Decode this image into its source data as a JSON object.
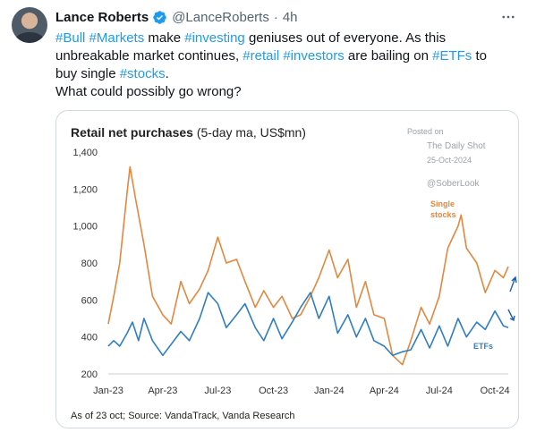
{
  "tweet": {
    "author_name": "Lance Roberts",
    "handle": "@LanceRoberts",
    "separator": "·",
    "time": "4h",
    "text_segments": [
      [
        {
          "t": "#Bull",
          "tag": true
        },
        {
          "t": " ",
          "tag": false
        },
        {
          "t": "#Markets",
          "tag": true
        },
        {
          "t": " make ",
          "tag": false
        },
        {
          "t": "#investing",
          "tag": true
        },
        {
          "t": " geniuses out of everyone. As this",
          "tag": false
        }
      ],
      [
        {
          "t": "unbreakable market continues, ",
          "tag": false
        },
        {
          "t": "#retail",
          "tag": true
        },
        {
          "t": " ",
          "tag": false
        },
        {
          "t": "#investors",
          "tag": true
        },
        {
          "t": " are bailing on ",
          "tag": false
        },
        {
          "t": "#ETFs",
          "tag": true
        },
        {
          "t": " to",
          "tag": false
        }
      ],
      [
        {
          "t": "buy single ",
          "tag": false
        },
        {
          "t": "#stocks",
          "tag": true
        },
        {
          "t": ".",
          "tag": false
        }
      ],
      [
        {
          "t": "What could possibly go wrong?",
          "tag": false
        }
      ]
    ],
    "icons": {
      "verified": "verified-badge-icon",
      "more": "more-options-icon"
    },
    "colors": {
      "link": "#1d9bf0",
      "verified": "#1d9bf0",
      "muted": "#536471"
    }
  },
  "chart_data": {
    "type": "line",
    "title_bold": "Retail net purchases",
    "title_rest": " (5-day ma, US$mn)",
    "x_ticks": [
      "Jan-23",
      "Apr-23",
      "Jul-23",
      "Oct-23",
      "Jan-24",
      "Apr-24",
      "Jul-24",
      "Oct-24"
    ],
    "y_ticks": [
      "1,400",
      "1,200",
      "1,000",
      "800",
      "600",
      "400",
      "200"
    ],
    "ylim": [
      200,
      1400
    ],
    "x_range": [
      "2023-01-01",
      "2024-10-23"
    ],
    "grid": false,
    "series": [
      {
        "name": "Single stocks",
        "label_lines": [
          "Single",
          "stocks"
        ],
        "color": "#e2883f",
        "dates": [
          "2023-01-01",
          "2023-01-10",
          "2023-01-20",
          "2023-02-01",
          "2023-02-06",
          "2023-02-15",
          "2023-03-01",
          "2023-03-15",
          "2023-04-01",
          "2023-04-15",
          "2023-05-01",
          "2023-05-15",
          "2023-06-01",
          "2023-06-15",
          "2023-07-01",
          "2023-07-15",
          "2023-08-01",
          "2023-08-15",
          "2023-09-01",
          "2023-09-15",
          "2023-10-01",
          "2023-10-15",
          "2023-11-01",
          "2023-11-15",
          "2023-12-01",
          "2023-12-15",
          "2024-01-01",
          "2024-01-15",
          "2024-02-01",
          "2024-02-15",
          "2024-03-01",
          "2024-03-15",
          "2024-04-01",
          "2024-04-15",
          "2024-05-01",
          "2024-05-15",
          "2024-06-01",
          "2024-06-15",
          "2024-07-01",
          "2024-07-15",
          "2024-08-01",
          "2024-08-06",
          "2024-08-15",
          "2024-09-01",
          "2024-09-15",
          "2024-10-01",
          "2024-10-15",
          "2024-10-23"
        ],
        "values": [
          470,
          620,
          800,
          1180,
          1320,
          1150,
          900,
          620,
          520,
          470,
          700,
          580,
          660,
          760,
          940,
          800,
          820,
          700,
          560,
          650,
          560,
          620,
          500,
          520,
          620,
          720,
          870,
          720,
          820,
          560,
          700,
          520,
          500,
          300,
          250,
          380,
          560,
          470,
          620,
          880,
          1000,
          1060,
          880,
          800,
          640,
          760,
          720,
          780
        ]
      },
      {
        "name": "ETFs",
        "label_lines": [
          "ETFs"
        ],
        "color": "#2f7ec1",
        "dates": [
          "2023-01-01",
          "2023-01-10",
          "2023-01-20",
          "2023-02-01",
          "2023-02-10",
          "2023-02-20",
          "2023-03-01",
          "2023-03-15",
          "2023-04-01",
          "2023-04-15",
          "2023-05-01",
          "2023-05-15",
          "2023-06-01",
          "2023-06-15",
          "2023-07-01",
          "2023-07-15",
          "2023-08-01",
          "2023-08-15",
          "2023-09-01",
          "2023-09-15",
          "2023-10-01",
          "2023-10-15",
          "2023-11-01",
          "2023-11-15",
          "2023-12-01",
          "2023-12-15",
          "2024-01-01",
          "2024-01-15",
          "2024-02-01",
          "2024-02-15",
          "2024-03-01",
          "2024-03-15",
          "2024-04-01",
          "2024-04-15",
          "2024-05-01",
          "2024-05-15",
          "2024-06-01",
          "2024-06-15",
          "2024-07-01",
          "2024-07-15",
          "2024-08-01",
          "2024-08-15",
          "2024-09-01",
          "2024-09-15",
          "2024-10-01",
          "2024-10-15",
          "2024-10-23"
        ],
        "values": [
          350,
          380,
          350,
          420,
          480,
          380,
          500,
          380,
          300,
          360,
          430,
          380,
          500,
          640,
          580,
          450,
          520,
          580,
          450,
          380,
          500,
          390,
          480,
          560,
          640,
          500,
          620,
          420,
          520,
          400,
          500,
          380,
          350,
          300,
          320,
          330,
          440,
          340,
          460,
          350,
          500,
          400,
          480,
          440,
          540,
          460,
          450
        ]
      }
    ],
    "watermark": [
      "Posted on",
      "The Daily Shot",
      "25-Oct-2024",
      "@SoberLook"
    ],
    "source": "As of 23 oct; Source: VandaTrack, Vanda Research",
    "arrow_icons": [
      "up-arrow-icon",
      "down-arrow-icon"
    ]
  }
}
